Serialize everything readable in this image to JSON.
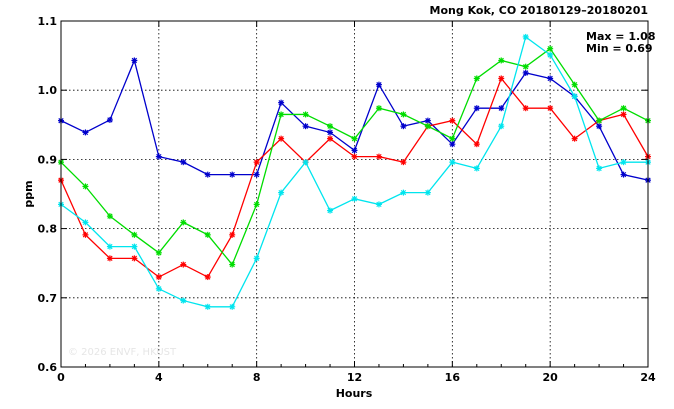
{
  "chart_data": {
    "type": "line",
    "title": "Mong Kok, CO 20180129–20180201",
    "xlabel": "Hours",
    "ylabel": "ppm",
    "xlim": [
      0,
      24
    ],
    "ylim": [
      0.6,
      1.1
    ],
    "xticks": [
      0,
      4,
      8,
      12,
      16,
      20,
      24
    ],
    "yticks": [
      0.6,
      0.7,
      0.8,
      0.9,
      1.0,
      1.1
    ],
    "ytick_labels": [
      "0.6",
      "0.7",
      "0.8",
      "0.9",
      "1.0",
      "1.1"
    ],
    "grid": true,
    "annotations": [
      "Max = 1.08",
      "Min = 0.69"
    ],
    "watermark": "© 2026 ENVF, HKUST",
    "x": [
      0,
      1,
      2,
      3,
      4,
      5,
      6,
      7,
      8,
      9,
      10,
      11,
      12,
      13,
      14,
      15,
      16,
      17,
      18,
      19,
      20,
      21,
      22,
      23,
      24
    ],
    "series": [
      {
        "color": "#0000cc",
        "values": [
          0.956,
          0.939,
          0.957,
          1.043,
          0.904,
          0.896,
          0.878,
          0.878,
          0.878,
          0.982,
          0.948,
          0.939,
          0.913,
          1.008,
          0.948,
          0.956,
          0.922,
          0.974,
          0.974,
          1.025,
          1.017,
          0.991,
          0.948,
          0.878,
          0.87
        ]
      },
      {
        "color": "#ff0000",
        "values": [
          0.87,
          0.791,
          0.757,
          0.757,
          0.73,
          0.748,
          0.73,
          0.791,
          0.896,
          0.93,
          0.896,
          0.93,
          0.904,
          0.904,
          0.896,
          0.948,
          0.956,
          0.922,
          1.017,
          0.974,
          0.974,
          0.93,
          0.956,
          0.965,
          0.904
        ]
      },
      {
        "color": "#00dd00",
        "values": [
          0.896,
          0.861,
          0.818,
          0.791,
          0.765,
          0.809,
          0.791,
          0.748,
          0.835,
          0.965,
          0.965,
          0.948,
          0.93,
          0.974,
          0.965,
          0.948,
          0.93,
          1.017,
          1.043,
          1.034,
          1.06,
          1.008,
          0.956,
          0.974,
          0.956
        ]
      },
      {
        "color": "#00e5ee",
        "values": [
          0.835,
          0.809,
          0.774,
          0.774,
          0.713,
          0.696,
          0.687,
          0.687,
          0.757,
          0.852,
          0.896,
          0.826,
          0.843,
          0.835,
          0.852,
          0.852,
          0.896,
          0.887,
          0.948,
          1.077,
          1.051,
          0.991,
          0.887,
          0.896,
          0.896
        ]
      }
    ]
  }
}
